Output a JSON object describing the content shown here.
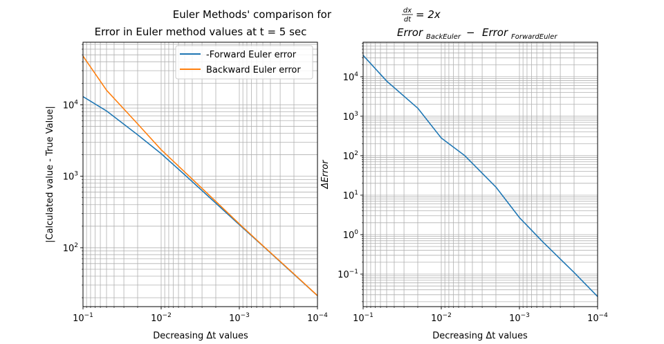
{
  "figure": {
    "suptitle_prefix": "Euler Methods' comparison for ",
    "suptitle_frac_num": "dx",
    "suptitle_frac_den": "dt",
    "suptitle_rhs": "= 2x"
  },
  "chart_data": [
    {
      "type": "line",
      "title": "Error in Euler method values at t = 5 sec",
      "xlabel": "Decreasing Δt values",
      "ylabel": "|Calculated value - True Value|",
      "xscale": "log",
      "yscale": "log",
      "x_inverted": true,
      "xlim": [
        0.1,
        0.0001
      ],
      "ylim": [
        15,
        75000
      ],
      "grid": "both (major and minor)",
      "legend_placement": "top-right",
      "xticks": [
        {
          "value": 0.1,
          "base": "10",
          "exp": "−1"
        },
        {
          "value": 0.01,
          "base": "10",
          "exp": "−2"
        },
        {
          "value": 0.001,
          "base": "10",
          "exp": "−3"
        },
        {
          "value": 0.0001,
          "base": "10",
          "exp": "−4"
        }
      ],
      "yticks": [
        {
          "value": 100,
          "base": "10",
          "exp": "2"
        },
        {
          "value": 1000,
          "base": "10",
          "exp": "3"
        },
        {
          "value": 10000,
          "base": "10",
          "exp": "4"
        }
      ],
      "series": [
        {
          "name": "-Forward Euler error",
          "color": "#1f77b4",
          "x": [
            0.1,
            0.05,
            0.02,
            0.01,
            0.005,
            0.002,
            0.001,
            0.0005,
            0.0002,
            0.0001
          ],
          "values": [
            13000,
            8200,
            3800,
            2070,
            1050,
            420,
            210,
            106,
            42.5,
            21.3
          ]
        },
        {
          "name": "Backward Euler error",
          "color": "#ff7f0e",
          "x": [
            0.1,
            0.05,
            0.02,
            0.01,
            0.005,
            0.002,
            0.001,
            0.0005,
            0.0002,
            0.0001
          ],
          "values": [
            48000,
            16000,
            5400,
            2350,
            1150,
            445,
            216,
            107,
            43,
            21.4
          ]
        }
      ]
    },
    {
      "type": "line",
      "title_main": "Error",
      "title_sub1": "BackEuler",
      "title_sub2": "ForwardEuler",
      "title_minus": " − ",
      "xlabel": "Decreasing Δt values",
      "ylabel": "ΔError",
      "xscale": "log",
      "yscale": "log",
      "x_inverted": true,
      "xlim": [
        0.1,
        0.0001
      ],
      "ylim": [
        0.015,
        75000
      ],
      "grid": "both (major and minor)",
      "xticks": [
        {
          "value": 0.1,
          "base": "10",
          "exp": "−1"
        },
        {
          "value": 0.01,
          "base": "10",
          "exp": "−2"
        },
        {
          "value": 0.001,
          "base": "10",
          "exp": "−3"
        },
        {
          "value": 0.0001,
          "base": "10",
          "exp": "−4"
        }
      ],
      "yticks": [
        {
          "value": 0.1,
          "base": "10",
          "exp": "−1"
        },
        {
          "value": 1,
          "base": "10",
          "exp": "0"
        },
        {
          "value": 10,
          "base": "10",
          "exp": "1"
        },
        {
          "value": 100,
          "base": "10",
          "exp": "2"
        },
        {
          "value": 1000,
          "base": "10",
          "exp": "3"
        },
        {
          "value": 10000,
          "base": "10",
          "exp": "4"
        }
      ],
      "series": [
        {
          "color": "#1f77b4",
          "x": [
            0.1,
            0.05,
            0.02,
            0.01,
            0.005,
            0.002,
            0.001,
            0.0005,
            0.0002,
            0.0001
          ],
          "values": [
            35000,
            7800,
            1600,
            280,
            100,
            16,
            2.7,
            0.65,
            0.11,
            0.027
          ]
        }
      ]
    }
  ]
}
